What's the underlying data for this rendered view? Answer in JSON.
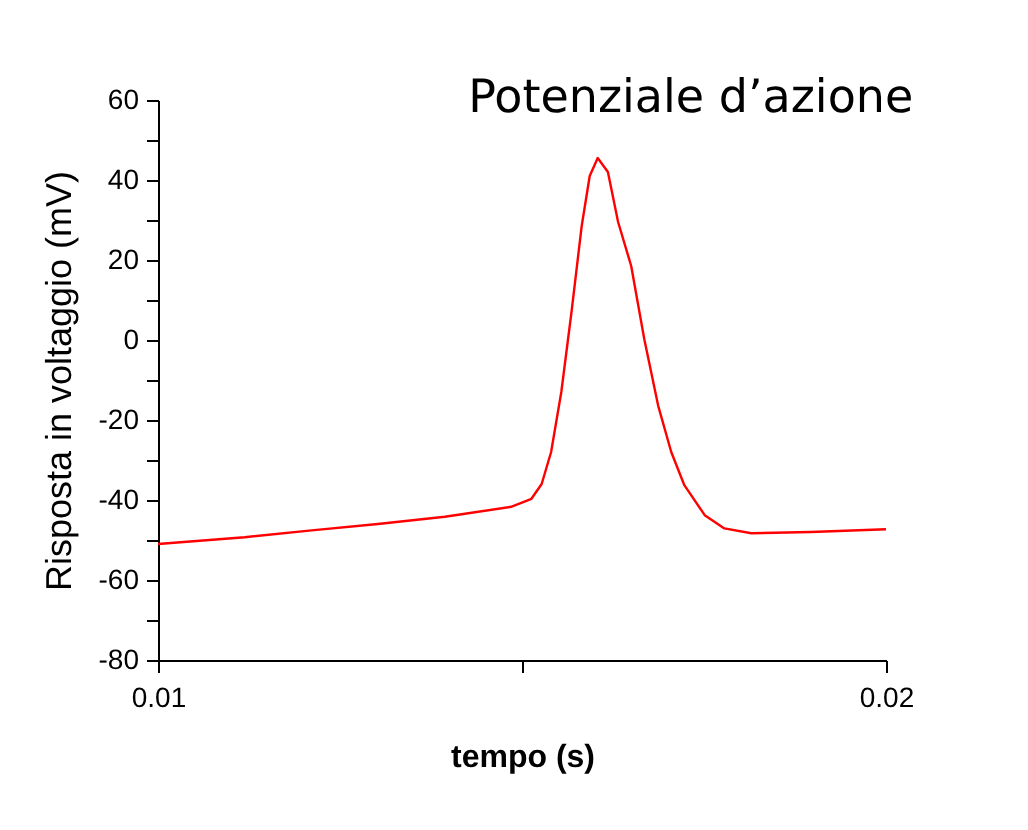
{
  "chart_data": {
    "type": "line",
    "title": "Potenziale d’azione",
    "xlabel": "tempo (s)",
    "ylabel": "Risposta in voltaggio (mV)",
    "x": [
      0.01,
      0.01119,
      0.01211,
      0.01302,
      0.01394,
      0.01485,
      0.01513,
      0.01527,
      0.0154,
      0.01554,
      0.01568,
      0.01582,
      0.01593,
      0.01604,
      0.01618,
      0.01632,
      0.0165,
      0.01668,
      0.01687,
      0.01705,
      0.01723,
      0.01751,
      0.01778,
      0.01815,
      0.01897,
      0.02
    ],
    "series": [
      {
        "color": "#ff0000",
        "values": [
          -51,
          -49.3,
          -47.6,
          -46,
          -44.2,
          -41.7,
          -39.7,
          -36,
          -28,
          -13,
          7,
          28.5,
          41,
          45.5,
          42,
          29.5,
          18.5,
          0.2,
          -16.4,
          -28,
          -36.3,
          -43.8,
          -47.1,
          -48.3,
          -48,
          -47.3
        ]
      }
    ],
    "xlim": [
      0.01,
      0.02
    ],
    "xticks": [
      0.01,
      {
        "value": 0.015,
        "label": null
      },
      0.02
    ],
    "ylim": [
      -80,
      60
    ],
    "yticks": [
      -80,
      {
        "value": -70,
        "label": null
      },
      -60,
      {
        "value": -50,
        "label": null
      },
      -40,
      {
        "value": -30,
        "label": null
      },
      -20,
      {
        "value": -10,
        "label": null
      },
      0,
      {
        "value": 10,
        "label": null
      },
      20,
      {
        "value": 30,
        "label": null
      },
      40,
      {
        "value": 50,
        "label": null
      },
      60
    ],
    "grid": false,
    "marker": "none",
    "line_style": "solid"
  }
}
